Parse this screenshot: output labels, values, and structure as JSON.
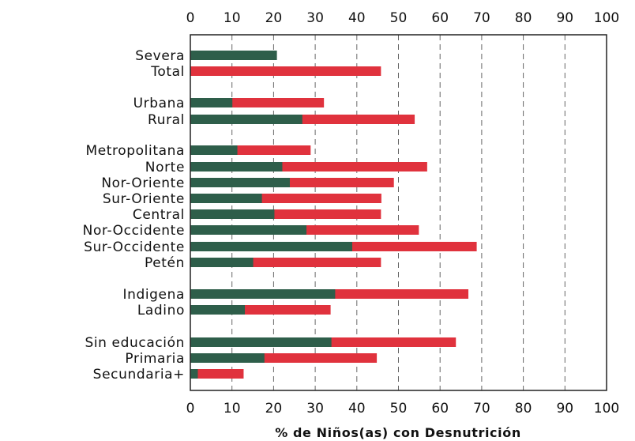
{
  "chart_data": {
    "type": "bar",
    "stacked": false,
    "orientation": "horizontal",
    "xlabel": "% de Niños(as) con Desnutrición",
    "xlim": [
      0,
      100
    ],
    "xticks": [
      "0",
      "10",
      "20",
      "30",
      "40",
      "50",
      "60",
      "70",
      "80",
      "90",
      "100"
    ],
    "grid": "vertical dashed",
    "categories": [
      "Severa",
      "Total",
      "Urbana",
      "Rural",
      "Metropolitana",
      "Norte",
      "Nor-Oriente",
      "Sur-Oriente",
      "Central",
      "Nor-Occidente",
      "Sur-Occidente",
      "Petén",
      "Indigena",
      "Ladino",
      "Sin educación",
      "Primaria",
      "Secundaria+"
    ],
    "series": [
      {
        "color": "#e0323d",
        "values": [
          null,
          45.8,
          32.1,
          53.9,
          28.9,
          56.9,
          48.9,
          45.9,
          45.8,
          54.9,
          68.8,
          45.8,
          66.8,
          33.7,
          63.8,
          44.8,
          12.8
        ]
      },
      {
        "color": "#2e5e4a",
        "values": [
          20.8,
          null,
          10.1,
          26.9,
          11.3,
          22.1,
          23.9,
          17.2,
          20.2,
          27.9,
          38.9,
          15.1,
          34.8,
          13.1,
          33.9,
          17.8,
          1.8
        ]
      }
    ]
  }
}
